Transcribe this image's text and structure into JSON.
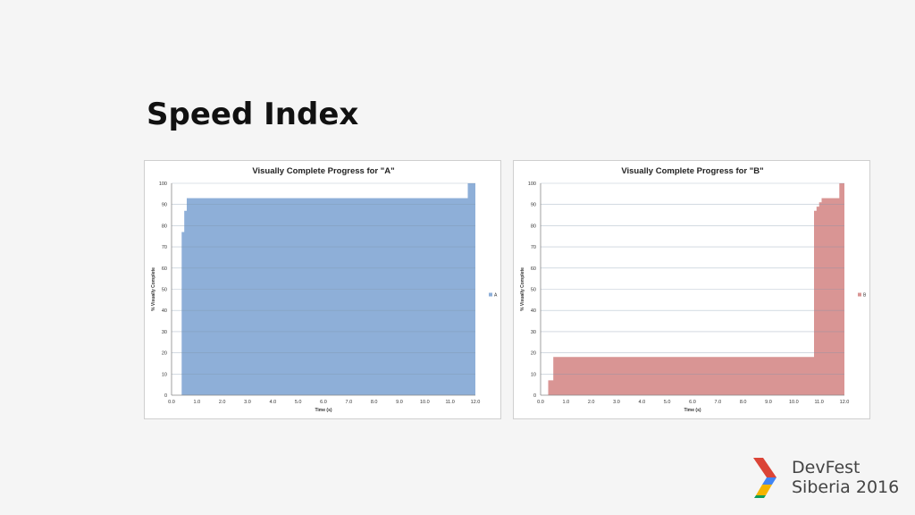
{
  "slide": {
    "title": "Speed Index"
  },
  "brand": {
    "line1": "DevFest",
    "line2": "Siberia 2016",
    "logo_colors": [
      "#DB4437",
      "#4285F4",
      "#F4B400",
      "#0F9D58"
    ]
  },
  "chart_data": [
    {
      "type": "area",
      "step": true,
      "title": "Visually Complete Progress for \"A\"",
      "xlabel": "Time (s)",
      "ylabel": "% Visually Complete",
      "xlim": [
        0,
        12
      ],
      "ylim": [
        0,
        100
      ],
      "xticks": [
        "0.0",
        "1.0",
        "2.0",
        "3.0",
        "4.0",
        "5.0",
        "6.0",
        "7.0",
        "8.0",
        "9.0",
        "10.0",
        "11.0",
        "12.0"
      ],
      "yticks": [
        "0",
        "10",
        "20",
        "30",
        "40",
        "50",
        "60",
        "70",
        "80",
        "90",
        "100"
      ],
      "grid": true,
      "legend": "right",
      "series": [
        {
          "name": "A",
          "color": "#8EAFD8",
          "x": [
            0.4,
            0.5,
            0.6,
            11.7,
            12.0
          ],
          "y": [
            77,
            87,
            93,
            100,
            100
          ]
        }
      ]
    },
    {
      "type": "area",
      "step": true,
      "title": "Visually Complete Progress for \"B\"",
      "xlabel": "Time (s)",
      "ylabel": "% Visually Complete",
      "xlim": [
        0,
        12
      ],
      "ylim": [
        0,
        100
      ],
      "xticks": [
        "0.0",
        "1.0",
        "2.0",
        "3.0",
        "4.0",
        "5.0",
        "6.0",
        "7.0",
        "8.0",
        "9.0",
        "10.0",
        "11.0",
        "12.0"
      ],
      "yticks": [
        "0",
        "10",
        "20",
        "30",
        "40",
        "50",
        "60",
        "70",
        "80",
        "90",
        "100"
      ],
      "grid": true,
      "legend": "right",
      "series": [
        {
          "name": "B",
          "color": "#D99594",
          "x": [
            0.3,
            0.5,
            10.8,
            10.9,
            11.0,
            11.1,
            11.8,
            12.0
          ],
          "y": [
            7,
            18,
            87,
            89,
            91,
            93,
            100,
            100
          ]
        }
      ]
    }
  ]
}
